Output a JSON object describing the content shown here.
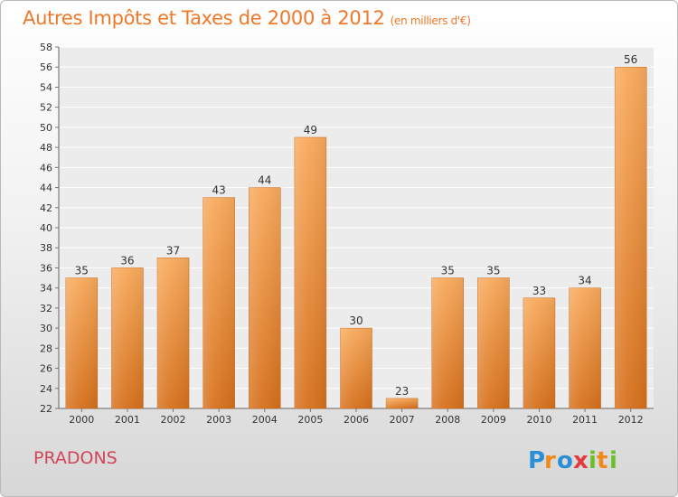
{
  "header": {
    "title": "Autres Impôts et Taxes de 2000 à 2012",
    "subtitle": "(en milliers d'€)"
  },
  "footer": {
    "location": "PRADONS",
    "brand": "Proxiti"
  },
  "colors": {
    "bar_light": "#f7a85a",
    "bar_dark": "#d9731e",
    "title": "#f07828",
    "location": "#d2455a"
  },
  "chart_data": {
    "type": "bar",
    "title": "Autres Impôts et Taxes de 2000 à 2012",
    "subtitle": "(en milliers d'€)",
    "categories": [
      "2000",
      "2001",
      "2002",
      "2003",
      "2004",
      "2005",
      "2006",
      "2007",
      "2008",
      "2009",
      "2010",
      "2011",
      "2012"
    ],
    "values": [
      35,
      36,
      37,
      43,
      44,
      49,
      30,
      23,
      35,
      35,
      33,
      34,
      56
    ],
    "ylim": [
      22,
      58
    ],
    "yticks": [
      22,
      24,
      26,
      28,
      30,
      32,
      34,
      36,
      38,
      40,
      42,
      44,
      46,
      48,
      50,
      52,
      54,
      56,
      58
    ],
    "grid": true,
    "xlabel": "",
    "ylabel": ""
  }
}
